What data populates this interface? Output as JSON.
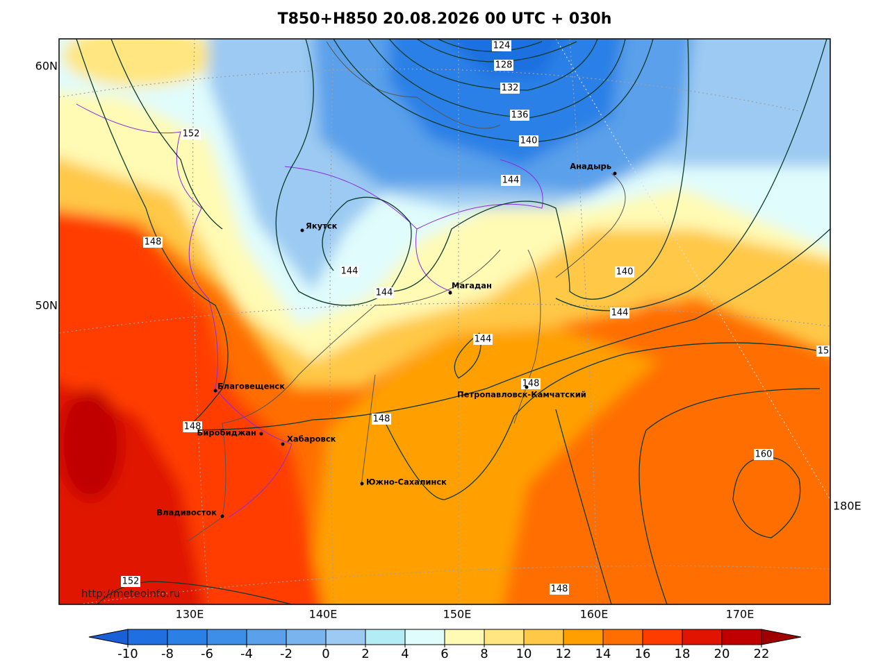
{
  "title": "T850+H850 20.08.2026 00 UTC + 030h",
  "latitude_labels": [
    "60N",
    "50N"
  ],
  "longitude_labels": [
    "130E",
    "140E",
    "150E",
    "160E",
    "170E",
    "180E"
  ],
  "contour_labels": [
    124,
    128,
    132,
    136,
    140,
    144,
    152,
    148,
    144,
    144,
    140,
    144,
    144,
    148,
    15,
    148,
    148,
    160,
    152,
    148
  ],
  "cities": [
    "Якутск",
    "Магадан",
    "Анадырь",
    "Благовещенск",
    "Биробиджан",
    "Хабаровск",
    "Петропавловск-Камчатский",
    "Южно-Сахалинск",
    "Владивосток"
  ],
  "credit": "http://meteoinfo.ru",
  "colorbar": {
    "ticks": [
      -10,
      -8,
      -6,
      -4,
      -2,
      0,
      2,
      4,
      6,
      8,
      10,
      12,
      14,
      16,
      18,
      20,
      22
    ],
    "colors": [
      "#1a5fd6",
      "#1f6fe0",
      "#2b80e6",
      "#3c8ee8",
      "#5aa0ea",
      "#7ab4ee",
      "#9ccaf2",
      "#b4ecf6",
      "#e0fcfc",
      "#fffab4",
      "#ffe680",
      "#ffc846",
      "#ffa000",
      "#ff6e00",
      "#ff3c00",
      "#e01400",
      "#c00000",
      "#a00000"
    ]
  }
}
